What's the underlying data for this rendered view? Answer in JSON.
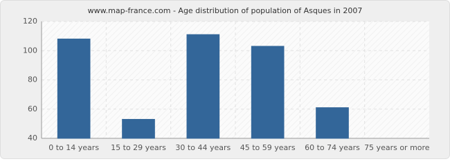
{
  "chart_data": {
    "type": "bar",
    "title": "www.map-france.com - Age distribution of population of Asques in 2007",
    "categories": [
      "0 to 14 years",
      "15 to 29 years",
      "30 to 44 years",
      "45 to 59 years",
      "60 to 74 years",
      "75 years or more"
    ],
    "values": [
      108,
      53,
      111,
      103,
      61,
      40
    ],
    "color": "#336699",
    "ylim": [
      40,
      120
    ],
    "yticks": [
      40,
      60,
      80,
      100,
      120
    ],
    "grid": true
  }
}
